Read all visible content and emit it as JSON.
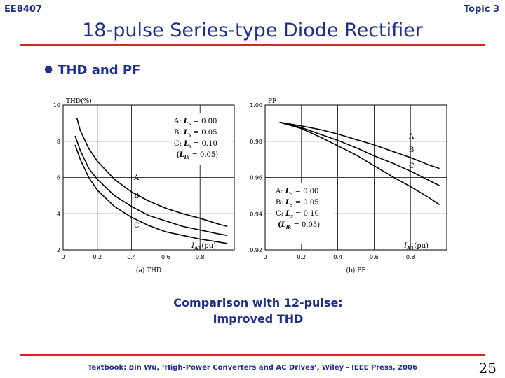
{
  "header": {
    "course": "EE8407",
    "topic": "Topic 3",
    "title": "18-pulse Series-type Diode Rectifier",
    "bullet": "THD and PF"
  },
  "comparison": [
    "Comparison with 12-pulse:",
    "Improved THD"
  ],
  "footer": {
    "textbook": "Textbook: Bin Wu, ‘High-Power Converters and AC Drives’, Wiley - IEEE Press, 2006",
    "page": "25"
  },
  "colors": {
    "title_blue": "#1f2f8c",
    "rule_red": "#d9241f"
  },
  "chart_data": [
    {
      "type": "line",
      "caption": "(a) THD",
      "ylabel": "THD(%)",
      "xlabel": "I_A1 (pu)",
      "xlim": [
        0,
        1.0
      ],
      "ylim": [
        2,
        10
      ],
      "xticks": [
        "0",
        "0.2",
        "0.4",
        "0.6",
        "0.8"
      ],
      "yticks": [
        "2",
        "4",
        "6",
        "8",
        "10"
      ],
      "grid": true,
      "legend_box": [
        "A: Ls = 0.00",
        "B: Ls = 0.05",
        "C: Ls = 0.10",
        "(Llk = 0.05)"
      ],
      "series": [
        {
          "name": "A",
          "x": [
            0.08,
            0.1,
            0.15,
            0.2,
            0.3,
            0.4,
            0.5,
            0.6,
            0.7,
            0.8,
            0.9,
            0.96
          ],
          "y": [
            9.3,
            8.6,
            7.6,
            6.9,
            5.9,
            5.2,
            4.7,
            4.3,
            4.0,
            3.75,
            3.45,
            3.3
          ]
        },
        {
          "name": "B",
          "x": [
            0.07,
            0.1,
            0.15,
            0.2,
            0.3,
            0.4,
            0.5,
            0.6,
            0.7,
            0.8,
            0.9,
            0.96
          ],
          "y": [
            8.3,
            7.5,
            6.5,
            5.9,
            5.0,
            4.4,
            3.9,
            3.6,
            3.3,
            3.1,
            2.9,
            2.8
          ]
        },
        {
          "name": "C",
          "x": [
            0.07,
            0.1,
            0.15,
            0.2,
            0.3,
            0.4,
            0.5,
            0.6,
            0.7,
            0.8,
            0.9,
            0.96
          ],
          "y": [
            7.8,
            7.0,
            6.0,
            5.3,
            4.4,
            3.8,
            3.35,
            3.0,
            2.8,
            2.6,
            2.45,
            2.35
          ]
        }
      ]
    },
    {
      "type": "line",
      "caption": "(b) PF",
      "ylabel": "PF",
      "xlabel": "I_A1 (pu)",
      "xlim": [
        0,
        1.0
      ],
      "ylim": [
        0.92,
        1.0
      ],
      "xticks": [
        "0",
        "0.2",
        "0.4",
        "0.6",
        "0.8"
      ],
      "yticks": [
        "0.92",
        "0.94",
        "0.96",
        "0.98",
        "1.00"
      ],
      "grid": true,
      "legend_box": [
        "A: Ls = 0.00",
        "B: Ls = 0.05",
        "C: Ls = 0.10",
        "(Llk = 0.05)"
      ],
      "series": [
        {
          "name": "A",
          "x": [
            0.08,
            0.2,
            0.3,
            0.4,
            0.5,
            0.6,
            0.7,
            0.8,
            0.9,
            0.96
          ],
          "y": [
            0.9905,
            0.9885,
            0.9865,
            0.984,
            0.981,
            0.978,
            0.9745,
            0.971,
            0.967,
            0.965
          ]
        },
        {
          "name": "B",
          "x": [
            0.08,
            0.2,
            0.3,
            0.4,
            0.5,
            0.6,
            0.7,
            0.8,
            0.9,
            0.96
          ],
          "y": [
            0.9905,
            0.9875,
            0.984,
            0.9805,
            0.9765,
            0.972,
            0.968,
            0.9635,
            0.9585,
            0.9555
          ]
        },
        {
          "name": "C",
          "x": [
            0.08,
            0.2,
            0.3,
            0.4,
            0.5,
            0.6,
            0.7,
            0.8,
            0.9,
            0.96
          ],
          "y": [
            0.9905,
            0.987,
            0.9825,
            0.9775,
            0.9725,
            0.9665,
            0.9605,
            0.955,
            0.949,
            0.945
          ]
        }
      ]
    }
  ]
}
